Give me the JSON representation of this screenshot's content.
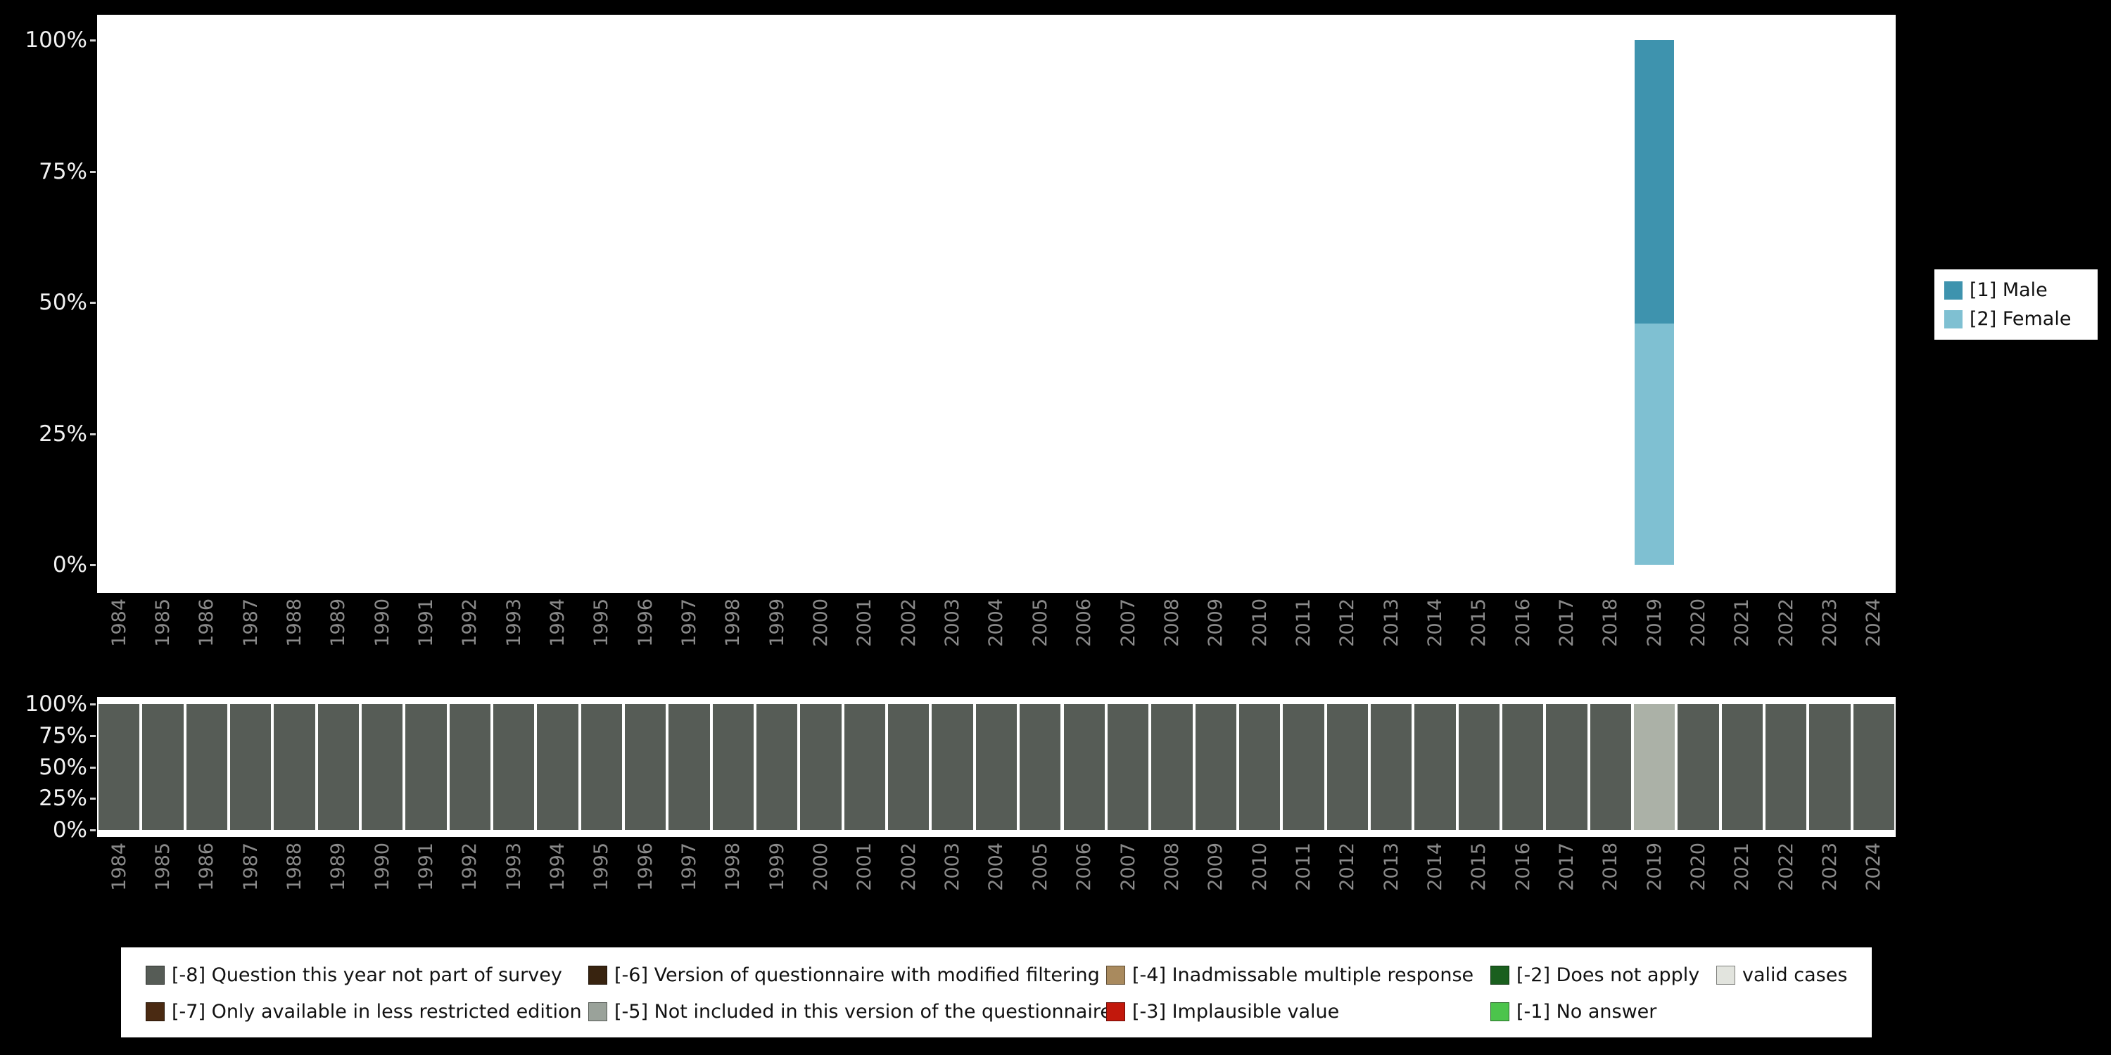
{
  "background": "#000000",
  "panel_bg": "#ffffff",
  "axis": {
    "y_ticks": [
      "100%",
      "75%",
      "50%",
      "25%",
      "0%"
    ],
    "year_label_color": "#8a8a8a",
    "percent_label_color": "#f2f2f2",
    "x_label_rotation_deg": 90
  },
  "legend_sex": {
    "items": [
      {
        "label": "[1] Male",
        "color": "#3e93ae"
      },
      {
        "label": "[2] Female",
        "color": "#7fc0d2"
      }
    ]
  },
  "legend_missing": {
    "items": [
      {
        "label": "[-8] Question this year not part of survey",
        "color": "#565c56",
        "col": 0,
        "row": 0
      },
      {
        "label": "[-7] Only available in less restricted edition",
        "color": "#4a2a12",
        "col": 0,
        "row": 1
      },
      {
        "label": "[-6] Version of questionnaire with modified filtering",
        "color": "#38230f",
        "col": 1,
        "row": 0
      },
      {
        "label": "[-5] Not included in this version of the questionnaire",
        "color": "#9aa29a",
        "col": 1,
        "row": 1
      },
      {
        "label": "[-4] Inadmissable multiple response",
        "color": "#a98a5e",
        "col": 2,
        "row": 0
      },
      {
        "label": "[-3] Implausible value",
        "color": "#c2180c",
        "col": 2,
        "row": 1
      },
      {
        "label": "[-2] Does not apply",
        "color": "#1a5f1e",
        "col": 3,
        "row": 0
      },
      {
        "label": "[-1] No answer",
        "color": "#4cc44c",
        "col": 3,
        "row": 1
      },
      {
        "label": "valid cases",
        "color": "#e2e4de",
        "col": 4,
        "row": 0
      }
    ]
  },
  "chart_data": [
    {
      "type": "bar",
      "stacked": true,
      "title": "",
      "xlabel": "",
      "ylabel": "",
      "ylim": [
        0,
        100
      ],
      "y_tick_labels": [
        "0%",
        "25%",
        "50%",
        "75%",
        "100%"
      ],
      "grid": false,
      "legend_position": "right",
      "categories": [
        "1984",
        "1985",
        "1986",
        "1987",
        "1988",
        "1989",
        "1990",
        "1991",
        "1992",
        "1993",
        "1994",
        "1995",
        "1996",
        "1997",
        "1998",
        "1999",
        "2000",
        "2001",
        "2002",
        "2003",
        "2004",
        "2005",
        "2006",
        "2007",
        "2008",
        "2009",
        "2010",
        "2011",
        "2012",
        "2013",
        "2014",
        "2015",
        "2016",
        "2017",
        "2018",
        "2019",
        "2020",
        "2021",
        "2022",
        "2023",
        "2024"
      ],
      "series": [
        {
          "name": "[1] Male",
          "key": "male",
          "color": "#3e93ae",
          "values": [
            0,
            0,
            0,
            0,
            0,
            0,
            0,
            0,
            0,
            0,
            0,
            0,
            0,
            0,
            0,
            0,
            0,
            0,
            0,
            0,
            0,
            0,
            0,
            0,
            0,
            0,
            0,
            0,
            0,
            0,
            0,
            0,
            0,
            0,
            0,
            54,
            0,
            0,
            0,
            0,
            0
          ]
        },
        {
          "name": "[2] Female",
          "key": "female",
          "color": "#7fc0d2",
          "values": [
            0,
            0,
            0,
            0,
            0,
            0,
            0,
            0,
            0,
            0,
            0,
            0,
            0,
            0,
            0,
            0,
            0,
            0,
            0,
            0,
            0,
            0,
            0,
            0,
            0,
            0,
            0,
            0,
            0,
            0,
            0,
            0,
            0,
            0,
            0,
            46,
            0,
            0,
            0,
            0,
            0
          ]
        }
      ]
    },
    {
      "type": "bar",
      "stacked": true,
      "title": "",
      "xlabel": "",
      "ylabel": "",
      "ylim": [
        0,
        100
      ],
      "y_tick_labels": [
        "0%",
        "25%",
        "50%",
        "75%",
        "100%"
      ],
      "grid": false,
      "legend_position": "bottom",
      "categories": [
        "1984",
        "1985",
        "1986",
        "1987",
        "1988",
        "1989",
        "1990",
        "1991",
        "1992",
        "1993",
        "1994",
        "1995",
        "1996",
        "1997",
        "1998",
        "1999",
        "2000",
        "2001",
        "2002",
        "2003",
        "2004",
        "2005",
        "2006",
        "2007",
        "2008",
        "2009",
        "2010",
        "2011",
        "2012",
        "2013",
        "2014",
        "2015",
        "2016",
        "2017",
        "2018",
        "2019",
        "2020",
        "2021",
        "2022",
        "2023",
        "2024"
      ],
      "series": [
        {
          "name": "[-8] Question this year not part of survey",
          "key": "missing8",
          "color": "#565c56",
          "values": [
            100,
            100,
            100,
            100,
            100,
            100,
            100,
            100,
            100,
            100,
            100,
            100,
            100,
            100,
            100,
            100,
            100,
            100,
            100,
            100,
            100,
            100,
            100,
            100,
            100,
            100,
            100,
            100,
            100,
            100,
            100,
            100,
            100,
            100,
            100,
            0,
            100,
            100,
            100,
            100,
            100
          ]
        },
        {
          "name": "valid cases",
          "key": "valid",
          "color": "#abb1a7",
          "values": [
            0,
            0,
            0,
            0,
            0,
            0,
            0,
            0,
            0,
            0,
            0,
            0,
            0,
            0,
            0,
            0,
            0,
            0,
            0,
            0,
            0,
            0,
            0,
            0,
            0,
            0,
            0,
            0,
            0,
            0,
            0,
            0,
            0,
            0,
            0,
            100,
            0,
            0,
            0,
            0,
            0
          ]
        }
      ]
    }
  ]
}
